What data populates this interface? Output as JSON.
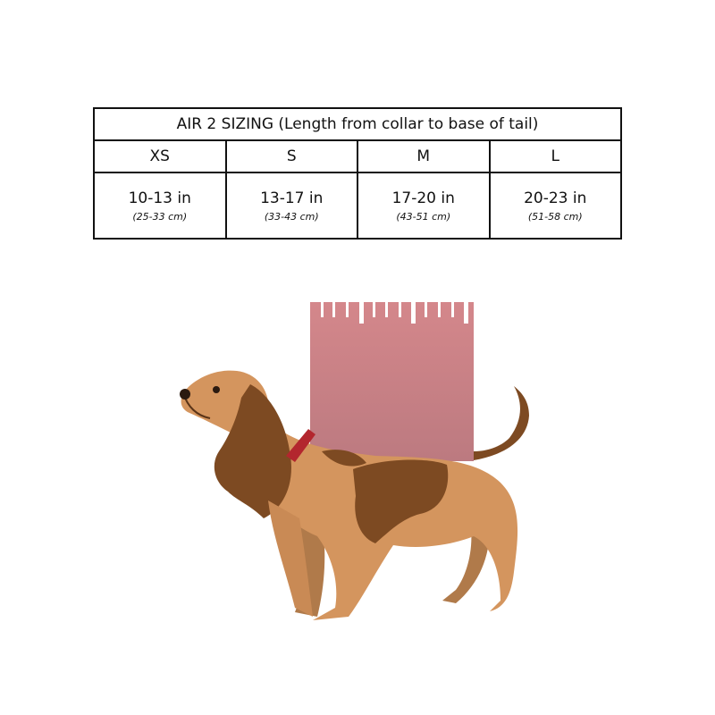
{
  "table": {
    "title": "AIR 2 SIZING (Length from collar to base of tail)",
    "sizes": [
      {
        "label": "XS",
        "inches": "10-13 in",
        "cm": "(25-33 cm)"
      },
      {
        "label": "S",
        "inches": "13-17 in",
        "cm": "(33-43 cm)"
      },
      {
        "label": "M",
        "inches": "17-20 in",
        "cm": "(43-51 cm)"
      },
      {
        "label": "L",
        "inches": "20-23 in",
        "cm": "(51-58 cm)"
      }
    ]
  },
  "colors": {
    "ruler": "#cf8489",
    "dog_body": "#d4955e",
    "dog_patch": "#7d4a22",
    "collar": "#b3262e"
  }
}
